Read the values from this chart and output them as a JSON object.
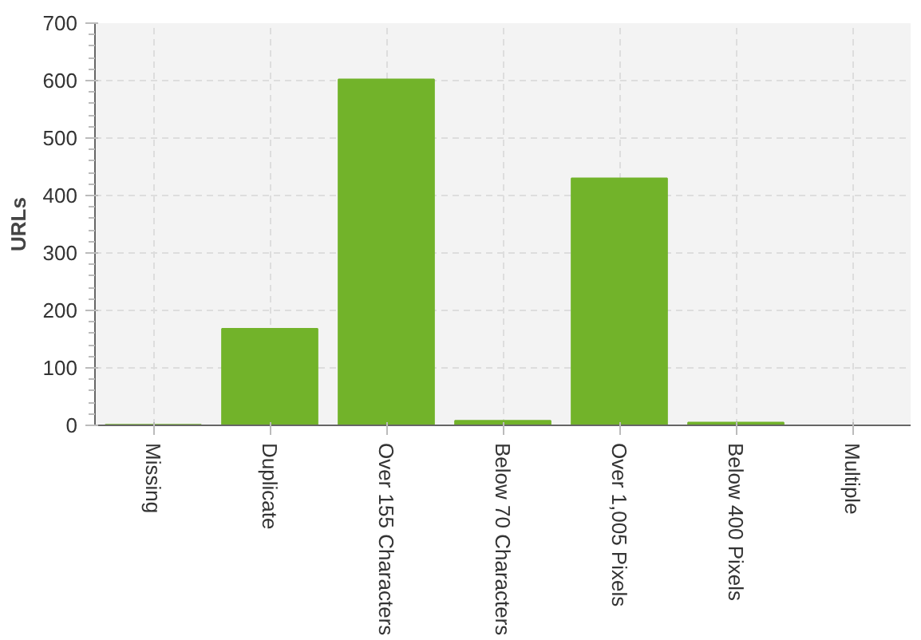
{
  "chart_data": {
    "type": "bar",
    "ylabel": "URLs",
    "categories": [
      "Missing",
      "Duplicate",
      "Over 155 Characters",
      "Below 70 Characters",
      "Over 1,005 Pixels",
      "Below 400 Pixels",
      "Multiple"
    ],
    "values": [
      1,
      168,
      602,
      8,
      430,
      5,
      0
    ],
    "color": "#72b32a",
    "ylim": [
      0,
      700
    ],
    "yticks": [
      0,
      100,
      200,
      300,
      400,
      500,
      600,
      700
    ],
    "grid": true
  }
}
